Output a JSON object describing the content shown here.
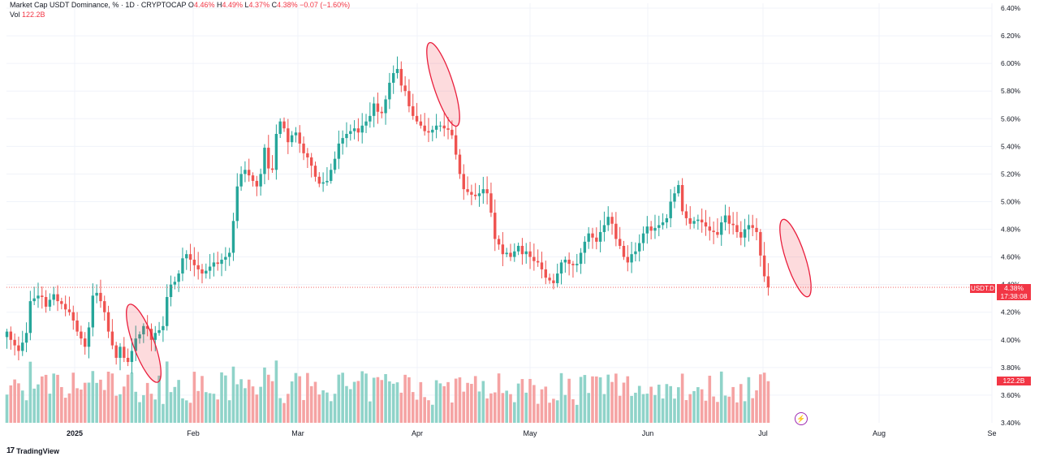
{
  "legend": {
    "title": "Market Cap USDT Dominance, % · 1D · CRYPTOCAP",
    "open_label": "O",
    "open": "4.46%",
    "high_label": "H",
    "high": "4.49%",
    "low_label": "L",
    "low": "4.37%",
    "close_label": "C",
    "close": "4.38%",
    "change": "−0.07 (−1.60%)",
    "vol_label": "Vol",
    "vol": "122.2B"
  },
  "price_tags": {
    "symbol": "USDT.D",
    "price": "4.38%",
    "countdown": "17:38:08",
    "volume": "122.2B"
  },
  "brand": {
    "logo": "17",
    "name": "TradingView"
  },
  "colors": {
    "up": "#26a69a",
    "down": "#ef5350",
    "vol_up": "#8fd3c9",
    "vol_down": "#f5a3a3"
  },
  "icons": [
    "lightning-icon",
    "tradingview-logo-icon"
  ],
  "chart_data": {
    "type": "candlestick",
    "y_axis": {
      "unit": "%",
      "range": [
        3.4,
        6.4
      ],
      "ticks": [
        "6.40%",
        "6.20%",
        "6.00%",
        "5.80%",
        "5.60%",
        "5.40%",
        "5.20%",
        "5.00%",
        "4.80%",
        "4.60%",
        "4.40%",
        "4.20%",
        "4.00%",
        "3.80%",
        "3.60%",
        "3.40%"
      ]
    },
    "x_axis": {
      "labels": [
        "2025",
        "Feb",
        "Mar",
        "Apr",
        "May",
        "Jun",
        "Jul",
        "Aug",
        "Se"
      ]
    },
    "grid": true,
    "last_price": 4.38,
    "overlay_x": [
      "2024-12-28",
      "2024-12-29",
      "2024-12-30",
      "2024-12-31",
      "2025-01-01",
      "2025-01-02",
      "2025-01-03",
      "2025-01-04",
      "2025-01-05",
      "2025-01-06",
      "2025-01-07",
      "2025-01-08",
      "2025-01-09",
      "2025-01-10",
      "2025-01-11",
      "2025-01-12",
      "2025-01-13",
      "2025-01-14",
      "2025-01-15",
      "2025-01-16",
      "2025-01-17",
      "2025-01-18",
      "2025-01-19",
      "2025-01-20",
      "2025-01-21",
      "2025-01-22",
      "2025-01-23",
      "2025-01-24",
      "2025-01-25",
      "2025-01-26",
      "2025-01-27",
      "2025-01-28",
      "2025-01-29",
      "2025-01-30",
      "2025-01-31",
      "2025-02-01",
      "2025-02-02",
      "2025-02-03",
      "2025-02-04",
      "2025-02-05",
      "2025-02-06",
      "2025-02-07",
      "2025-02-08",
      "2025-02-09",
      "2025-02-10",
      "2025-02-11",
      "2025-02-12",
      "2025-02-13",
      "2025-02-14",
      "2025-02-15",
      "2025-02-16",
      "2025-02-17",
      "2025-02-18",
      "2025-02-19",
      "2025-02-20",
      "2025-02-21",
      "2025-02-22",
      "2025-02-23",
      "2025-02-24",
      "2025-02-25",
      "2025-02-26",
      "2025-02-27",
      "2025-02-28",
      "2025-03-01",
      "2025-03-02",
      "2025-03-03",
      "2025-03-04",
      "2025-03-05",
      "2025-03-06",
      "2025-03-07",
      "2025-03-08",
      "2025-03-09",
      "2025-03-10",
      "2025-03-11",
      "2025-03-12",
      "2025-03-13",
      "2025-03-14",
      "2025-03-15",
      "2025-03-16",
      "2025-03-17",
      "2025-03-18",
      "2025-03-19",
      "2025-03-20",
      "2025-03-21",
      "2025-03-22",
      "2025-03-23",
      "2025-03-24",
      "2025-03-25",
      "2025-03-26",
      "2025-03-27",
      "2025-03-28",
      "2025-03-29",
      "2025-03-30",
      "2025-03-31",
      "2025-04-01",
      "2025-04-02",
      "2025-04-03",
      "2025-04-04",
      "2025-04-05",
      "2025-04-06",
      "2025-04-07",
      "2025-04-08",
      "2025-04-09",
      "2025-04-10",
      "2025-04-11",
      "2025-04-12",
      "2025-04-13",
      "2025-04-14",
      "2025-04-15",
      "2025-04-16",
      "2025-04-17",
      "2025-04-18",
      "2025-04-19",
      "2025-04-20",
      "2025-04-21",
      "2025-04-22",
      "2025-04-23",
      "2025-04-24",
      "2025-04-25",
      "2025-04-26",
      "2025-04-27",
      "2025-04-28",
      "2025-04-29",
      "2025-04-30",
      "2025-05-01",
      "2025-05-02",
      "2025-05-03",
      "2025-05-04",
      "2025-05-05",
      "2025-05-06",
      "2025-05-07",
      "2025-05-08",
      "2025-05-09",
      "2025-05-10",
      "2025-05-11",
      "2025-05-12",
      "2025-05-13",
      "2025-05-14",
      "2025-05-15",
      "2025-05-16",
      "2025-05-17",
      "2025-05-18",
      "2025-05-19",
      "2025-05-20",
      "2025-05-21",
      "2025-05-22",
      "2025-05-23",
      "2025-05-24",
      "2025-05-25",
      "2025-05-26",
      "2025-05-27",
      "2025-05-28",
      "2025-05-29",
      "2025-05-30",
      "2025-05-31",
      "2025-06-01",
      "2025-06-02",
      "2025-06-03",
      "2025-06-04",
      "2025-06-05",
      "2025-06-06",
      "2025-06-07",
      "2025-06-08",
      "2025-06-09",
      "2025-06-10",
      "2025-06-11",
      "2025-06-12",
      "2025-06-13",
      "2025-06-14",
      "2025-06-15",
      "2025-06-16",
      "2025-06-17",
      "2025-06-18",
      "2025-06-19",
      "2025-06-20",
      "2025-06-21",
      "2025-06-22",
      "2025-06-23",
      "2025-06-24",
      "2025-06-25",
      "2025-06-26",
      "2025-06-27",
      "2025-06-28",
      "2025-06-29",
      "2025-06-30",
      "2025-07-01",
      "2025-07-02",
      "2025-07-03",
      "2025-07-04",
      "2025-07-05",
      "2025-07-06",
      "2025-07-07",
      "2025-07-08",
      "2025-07-09",
      "2025-07-10",
      "2025-07-11"
    ],
    "close": [
      4.06,
      4.0,
      3.96,
      3.92,
      3.98,
      4.05,
      4.28,
      4.3,
      4.32,
      4.31,
      4.24,
      4.29,
      4.33,
      4.28,
      4.26,
      4.22,
      4.2,
      4.14,
      4.06,
      4.01,
      3.95,
      4.09,
      4.32,
      4.34,
      4.28,
      4.2,
      4.06,
      3.96,
      3.87,
      3.95,
      3.87,
      3.84,
      3.92,
      4.01,
      4.04,
      4.1,
      4.08,
      4.0,
      4.05,
      4.07,
      4.1,
      4.31,
      4.4,
      4.42,
      4.48,
      4.59,
      4.62,
      4.58,
      4.54,
      4.51,
      4.48,
      4.5,
      4.53,
      4.56,
      4.55,
      4.58,
      4.6,
      4.63,
      4.86,
      5.11,
      5.2,
      5.23,
      5.19,
      5.15,
      5.11,
      5.2,
      5.39,
      5.24,
      5.23,
      5.49,
      5.58,
      5.53,
      5.43,
      5.48,
      5.5,
      5.42,
      5.35,
      5.32,
      5.26,
      5.18,
      5.13,
      5.14,
      5.15,
      5.23,
      5.31,
      5.42,
      5.46,
      5.49,
      5.51,
      5.53,
      5.5,
      5.55,
      5.58,
      5.62,
      5.71,
      5.65,
      5.64,
      5.74,
      5.86,
      5.93,
      5.96,
      5.84,
      5.8,
      5.69,
      5.62,
      5.58,
      5.55,
      5.51,
      5.5,
      5.52,
      5.55,
      5.55,
      5.53,
      5.52,
      5.48,
      5.34,
      5.2,
      5.09,
      5.07,
      5.05,
      5.04,
      5.06,
      5.09,
      5.06,
      4.92,
      4.73,
      4.69,
      4.62,
      4.63,
      4.6,
      4.64,
      4.68,
      4.62,
      4.64,
      4.6,
      4.57,
      4.56,
      4.51,
      4.45,
      4.43,
      4.41,
      4.48,
      4.56,
      4.58,
      4.55,
      4.54,
      4.55,
      4.63,
      4.71,
      4.77,
      4.74,
      4.71,
      4.78,
      4.83,
      4.89,
      4.84,
      4.73,
      4.68,
      4.6,
      4.56,
      4.62,
      4.64,
      4.7,
      4.77,
      4.82,
      4.79,
      4.81,
      4.83,
      4.85,
      4.88,
      5.0,
      5.06,
      5.12,
      4.93,
      4.88,
      4.84,
      4.86,
      4.87,
      4.85,
      4.82,
      4.79,
      4.78,
      4.76,
      4.85,
      4.9,
      4.84,
      4.83,
      4.78,
      4.74,
      4.8,
      4.83,
      4.81,
      4.78,
      4.61,
      4.46,
      4.38
    ]
  }
}
